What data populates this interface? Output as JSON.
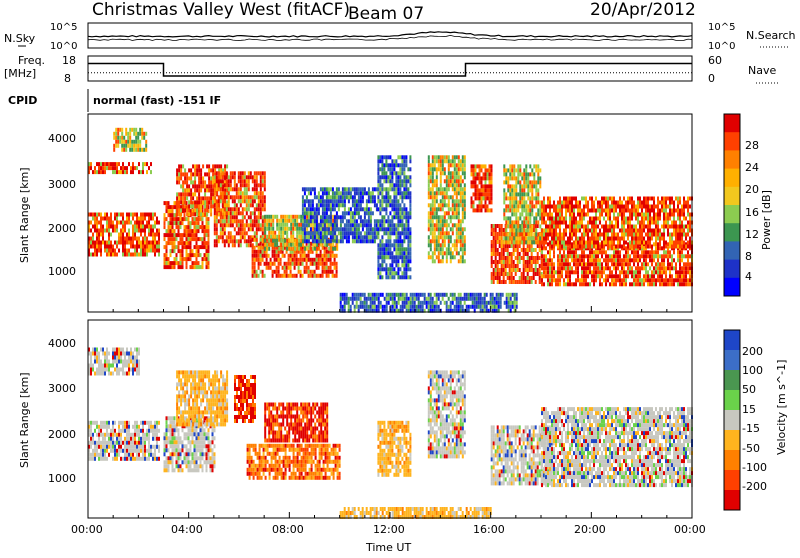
{
  "header": {
    "station": "Christmas Valley West (fitACF)",
    "beam": "Beam 07",
    "date": "20/Apr/2012"
  },
  "strip": {
    "nsky_label": "N.Sky",
    "nsky_ticks": [
      "10^5",
      "10^0"
    ],
    "nsearch_label": "N.Search",
    "nsearch_ticks": [
      "10^5",
      "10^0"
    ],
    "freq_label_1": "Freq.",
    "freq_label_2": "[MHz]",
    "freq_ticks": [
      "18",
      "8"
    ],
    "nave_label": "Nave",
    "nave_ticks": [
      "60",
      "0"
    ],
    "cpid_label": "CPID",
    "cpid_text": "normal (fast) -151 IF"
  },
  "chart_data": [
    {
      "type": "heatmap",
      "name": "power",
      "ylabel": "Slant Range [km]",
      "yticks": [
        "1000",
        "2000",
        "3000",
        "4000"
      ],
      "ylim": [
        180,
        4500
      ],
      "colorbar": {
        "label": "Power [dB]",
        "ticks": [
          "28",
          "24",
          "20",
          "16",
          "12",
          "8",
          "4"
        ],
        "colors": [
          "#e00000",
          "#ff4000",
          "#ff8000",
          "#ffb000",
          "#f2c81e",
          "#8ccc50",
          "#3c9650",
          "#3264b4",
          "#1e32c8",
          "#0000ff"
        ]
      },
      "regions": [
        {
          "t": [
            0.0,
            2.8
          ],
          "r": [
            1450,
            2350
          ],
          "level": "high"
        },
        {
          "t": [
            0.0,
            2.5
          ],
          "r": [
            3200,
            3450
          ],
          "level": "high"
        },
        {
          "t": [
            1.0,
            2.3
          ],
          "r": [
            3750,
            4200
          ],
          "level": "mid"
        },
        {
          "t": [
            3.0,
            4.8
          ],
          "r": [
            1150,
            2600
          ],
          "level": "high"
        },
        {
          "t": [
            3.5,
            5.5
          ],
          "r": [
            2300,
            3400
          ],
          "level": "high"
        },
        {
          "t": [
            5.0,
            7.0
          ],
          "r": [
            1650,
            3250
          ],
          "level": "high"
        },
        {
          "t": [
            6.5,
            9.9
          ],
          "r": [
            1000,
            1800
          ],
          "level": "high"
        },
        {
          "t": [
            7.0,
            9.9
          ],
          "r": [
            1600,
            2300
          ],
          "level": "mid"
        },
        {
          "t": [
            8.5,
            11.5
          ],
          "r": [
            1700,
            2900
          ],
          "level": "low"
        },
        {
          "t": [
            11.5,
            12.8
          ],
          "r": [
            900,
            3600
          ],
          "level": "low"
        },
        {
          "t": [
            13.5,
            15.0
          ],
          "r": [
            1300,
            3600
          ],
          "level": "mid"
        },
        {
          "t": [
            15.2,
            16.0
          ],
          "r": [
            2400,
            3400
          ],
          "level": "high"
        },
        {
          "t": [
            16.0,
            18.0
          ],
          "r": [
            850,
            2100
          ],
          "level": "high"
        },
        {
          "t": [
            16.5,
            18.0
          ],
          "r": [
            1700,
            3400
          ],
          "level": "mid"
        },
        {
          "t": [
            18.0,
            24.0
          ],
          "r": [
            800,
            1700
          ],
          "level": "high"
        },
        {
          "t": [
            18.0,
            24.0
          ],
          "r": [
            1600,
            2700
          ],
          "level": "high"
        },
        {
          "t": [
            10.0,
            17.0
          ],
          "r": [
            180,
            600
          ],
          "level": "low"
        }
      ]
    },
    {
      "type": "heatmap",
      "name": "velocity",
      "xlabel": "Time UT",
      "ylabel": "Slant Range [km]",
      "xticks": [
        "00:00",
        "04:00",
        "08:00",
        "12:00",
        "16:00",
        "20:00",
        "00:00"
      ],
      "xlim": [
        0,
        24
      ],
      "yticks": [
        "1000",
        "2000",
        "3000",
        "4000"
      ],
      "ylim": [
        180,
        4500
      ],
      "colorbar": {
        "label": "Velocity [m s^-1]",
        "ticks": [
          "200",
          "100",
          "50",
          "15",
          "-15",
          "-50",
          "-100",
          "-200"
        ],
        "colors": [
          "#1e46c8",
          "#3c6ec8",
          "#4a9650",
          "#6ad24a",
          "#c8c8c0",
          "#ffb41e",
          "#ff8000",
          "#ff4000",
          "#e00000"
        ]
      },
      "regions": [
        {
          "t": [
            0.0,
            2.8
          ],
          "r": [
            1500,
            2300
          ],
          "level": "gray"
        },
        {
          "t": [
            0.0,
            2.0
          ],
          "r": [
            3300,
            3900
          ],
          "level": "gray"
        },
        {
          "t": [
            3.0,
            5.0
          ],
          "r": [
            1200,
            2400
          ],
          "level": "gray"
        },
        {
          "t": [
            3.5,
            5.5
          ],
          "r": [
            2200,
            3400
          ],
          "level": "orange"
        },
        {
          "t": [
            5.8,
            6.6
          ],
          "r": [
            2300,
            3300
          ],
          "level": "red"
        },
        {
          "t": [
            6.3,
            10.0
          ],
          "r": [
            1100,
            1800
          ],
          "level": "dorange"
        },
        {
          "t": [
            7.0,
            9.5
          ],
          "r": [
            1900,
            2700
          ],
          "level": "red"
        },
        {
          "t": [
            11.5,
            12.8
          ],
          "r": [
            1100,
            2300
          ],
          "level": "orange"
        },
        {
          "t": [
            13.5,
            15.0
          ],
          "r": [
            1500,
            3400
          ],
          "level": "gray"
        },
        {
          "t": [
            16.0,
            18.5
          ],
          "r": [
            900,
            2200
          ],
          "level": "gray"
        },
        {
          "t": [
            18.0,
            24.0
          ],
          "r": [
            900,
            2600
          ],
          "level": "gray"
        },
        {
          "t": [
            10.0,
            16.0
          ],
          "r": [
            200,
            420
          ],
          "level": "orange"
        }
      ]
    }
  ],
  "strip_data": {
    "freq_mhz": [
      {
        "t": 0,
        "v": 15
      },
      {
        "t": 3,
        "v": 15
      },
      {
        "t": 3,
        "v": 10
      },
      {
        "t": 15,
        "v": 10
      },
      {
        "t": 15,
        "v": 15
      },
      {
        "t": 24,
        "v": 15
      }
    ],
    "nave_level": [
      {
        "t": 0,
        "v": 20
      },
      {
        "t": 24,
        "v": 20
      }
    ]
  }
}
